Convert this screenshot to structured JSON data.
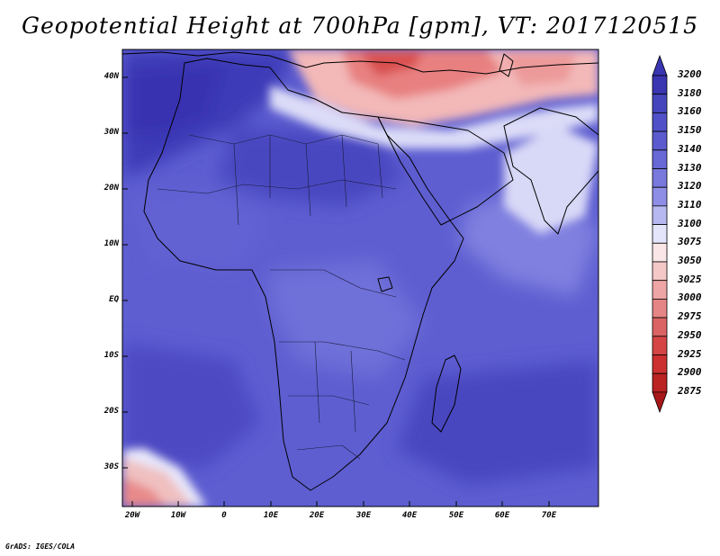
{
  "title": "Geopotential Height at 700hPa [gpm], VT: 2017120515",
  "credit": "GrADS: IGES/COLA",
  "lat_labels": [
    "40N",
    "30N",
    "20N",
    "10N",
    "EQ",
    "10S",
    "20S",
    "30S"
  ],
  "lon_labels": [
    "20W",
    "10W",
    "0",
    "10E",
    "20E",
    "30E",
    "40E",
    "50E",
    "60E",
    "70E"
  ],
  "colorbar": {
    "labels": [
      "3200",
      "3180",
      "3160",
      "3150",
      "3140",
      "3130",
      "3120",
      "3110",
      "3100",
      "3075",
      "3050",
      "3025",
      "3000",
      "2975",
      "2950",
      "2925",
      "2900",
      "2875"
    ],
    "colors": [
      "#3a35b0",
      "#3a35b0",
      "#4545bd",
      "#5050c8",
      "#5b5bcf",
      "#6868d6",
      "#7878dd",
      "#8e8ee6",
      "#b8b8f0",
      "#e4e4fa",
      "#fae6e6",
      "#f5c8c8",
      "#eea5a5",
      "#e58585",
      "#dc6363",
      "#d54545",
      "#cc3030",
      "#bb2222",
      "#a81818"
    ]
  },
  "colors": {
    "ocean_background": "#5b5bcf",
    "coast_line": "#000000",
    "border_line": "#1a1a3a"
  }
}
